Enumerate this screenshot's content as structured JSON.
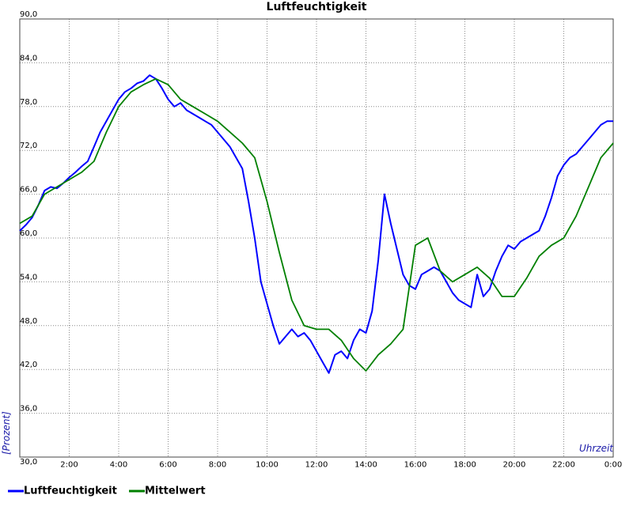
{
  "chart_data": {
    "type": "line",
    "title": "Luftfeuchtigkeit",
    "xlabel": "Uhrzeit",
    "ylabel": "[Prozent]",
    "xlim": [
      0,
      24
    ],
    "ylim": [
      30,
      90
    ],
    "x_tick_labels": [
      "2:00",
      "4:00",
      "6:00",
      "8:00",
      "10:00",
      "12:00",
      "14:00",
      "16:00",
      "18:00",
      "20:00",
      "22:00",
      "0:00"
    ],
    "y_tick_labels": [
      "30,0",
      "36,0",
      "42,0",
      "48,0",
      "54,0",
      "60,0",
      "66,0",
      "72,0",
      "78,0",
      "84,0",
      "90,0"
    ],
    "grid": true,
    "legend_position": "bottom-left",
    "series": [
      {
        "name": "Luftfeuchtigkeit",
        "color": "#0000ff",
        "x": [
          0.0,
          0.25,
          0.5,
          0.75,
          1.0,
          1.25,
          1.5,
          1.75,
          2.0,
          2.25,
          2.5,
          2.75,
          3.0,
          3.25,
          3.5,
          3.75,
          4.0,
          4.25,
          4.5,
          4.75,
          5.0,
          5.25,
          5.5,
          5.75,
          6.0,
          6.25,
          6.5,
          6.75,
          7.0,
          7.25,
          7.5,
          7.75,
          8.0,
          8.25,
          8.5,
          8.75,
          9.0,
          9.25,
          9.5,
          9.75,
          10.0,
          10.25,
          10.5,
          10.75,
          11.0,
          11.25,
          11.5,
          11.75,
          12.0,
          12.25,
          12.5,
          12.75,
          13.0,
          13.25,
          13.5,
          13.75,
          14.0,
          14.25,
          14.5,
          14.75,
          15.0,
          15.25,
          15.5,
          15.75,
          16.0,
          16.25,
          16.5,
          16.75,
          17.0,
          17.25,
          17.5,
          17.75,
          18.0,
          18.25,
          18.5,
          18.75,
          19.0,
          19.25,
          19.5,
          19.75,
          20.0,
          20.25,
          20.5,
          20.75,
          21.0,
          21.25,
          21.5,
          21.75,
          22.0,
          22.25,
          22.5,
          22.75,
          23.0,
          23.25,
          23.5,
          23.75,
          24.0
        ],
        "values": [
          61.0,
          61.8,
          62.8,
          64.5,
          66.5,
          67.0,
          66.8,
          67.5,
          68.3,
          69.0,
          69.8,
          70.5,
          72.5,
          74.5,
          76.0,
          77.5,
          79.0,
          80.0,
          80.5,
          81.2,
          81.5,
          82.3,
          81.8,
          80.5,
          79.0,
          78.0,
          78.5,
          77.5,
          77.0,
          76.5,
          76.0,
          75.5,
          74.5,
          73.5,
          72.5,
          71.0,
          69.5,
          65.0,
          60.0,
          54.0,
          51.0,
          48.0,
          45.5,
          46.5,
          47.5,
          46.5,
          47.0,
          46.0,
          44.5,
          43.0,
          41.5,
          44.0,
          44.5,
          43.5,
          46.0,
          47.5,
          47.0,
          50.0,
          57.0,
          66.0,
          62.0,
          58.5,
          55.0,
          53.5,
          53.0,
          55.0,
          55.5,
          56.0,
          55.5,
          54.0,
          52.5,
          51.5,
          51.0,
          50.5,
          55.0,
          52.0,
          53.0,
          55.5,
          57.5,
          59.0,
          58.5,
          59.5,
          60.0,
          60.5,
          61.0,
          63.0,
          65.5,
          68.5,
          70.0,
          71.0,
          71.5,
          72.5,
          73.5,
          74.5,
          75.5,
          76.0,
          76.0
        ]
      },
      {
        "name": "Mittelwert",
        "color": "#008000",
        "x": [
          0.0,
          0.5,
          1.0,
          1.5,
          2.0,
          2.5,
          3.0,
          3.5,
          4.0,
          4.5,
          5.0,
          5.5,
          6.0,
          6.5,
          7.0,
          7.5,
          8.0,
          8.5,
          9.0,
          9.5,
          10.0,
          10.5,
          11.0,
          11.5,
          12.0,
          12.5,
          13.0,
          13.5,
          14.0,
          14.5,
          15.0,
          15.5,
          16.0,
          16.5,
          17.0,
          17.5,
          18.0,
          18.5,
          19.0,
          19.5,
          20.0,
          20.5,
          21.0,
          21.5,
          22.0,
          22.5,
          23.0,
          23.5,
          24.0
        ],
        "values": [
          62.0,
          63.0,
          66.0,
          67.0,
          68.0,
          69.0,
          70.5,
          74.5,
          78.0,
          80.0,
          81.0,
          81.8,
          81.0,
          79.0,
          78.0,
          77.0,
          76.0,
          74.5,
          73.0,
          71.0,
          65.0,
          58.0,
          51.5,
          48.0,
          47.5,
          47.5,
          46.0,
          43.5,
          41.8,
          44.0,
          45.5,
          47.5,
          59.0,
          60.0,
          55.5,
          54.0,
          55.0,
          56.0,
          54.5,
          52.0,
          52.0,
          54.5,
          57.5,
          59.0,
          60.0,
          63.0,
          67.0,
          71.0,
          73.0
        ]
      }
    ]
  }
}
